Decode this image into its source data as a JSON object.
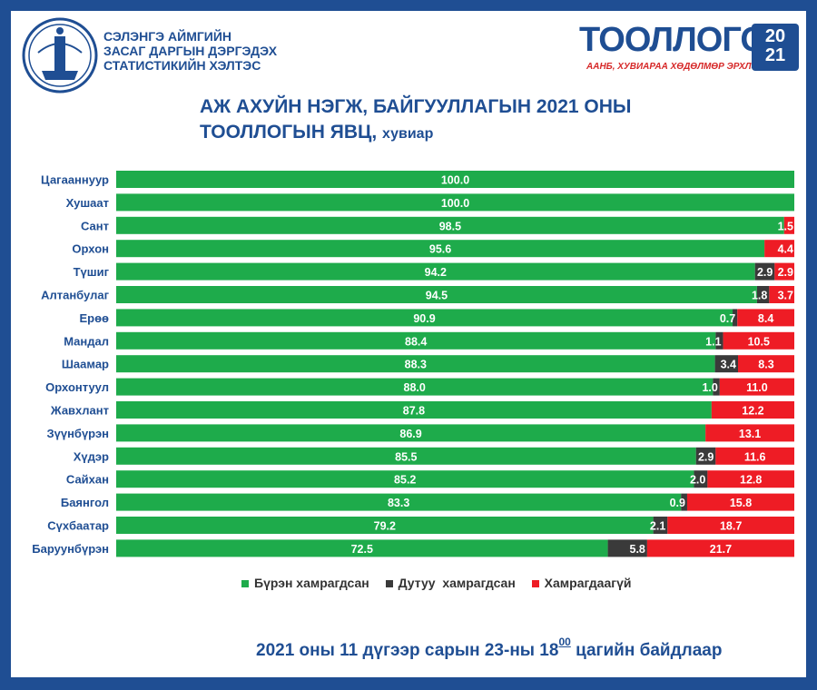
{
  "header": {
    "org_line1": "СЭЛЭНГЭ АЙМГИЙН",
    "org_line2": "ЗАСАГ ДАРГЫН ДЭРГЭДЭХ",
    "org_line3": "СТАТИСТИКИЙН ХЭЛТЭС",
    "logo_word": "ТООЛЛОГО",
    "logo_sub": "ААНБ, ХУВИАРАА ХӨДӨЛМӨР ЭРХЛЭГЧ",
    "logo_year_top": "20",
    "logo_year_bottom": "21"
  },
  "title_line1": "АЖ АХУЙН НЭГЖ, БАЙГУУЛЛАГЫН 2021 ОНЫ",
  "title_line2": "ТООЛЛОГЫН ЯВЦ,",
  "title_unit": "хувиар",
  "colors": {
    "full": "#1eab4b",
    "partial": "#3a3a3a",
    "none": "#ee1c25",
    "label": "#1f4e93"
  },
  "chart_data": {
    "type": "bar",
    "orientation": "horizontal",
    "stacked": true,
    "xlim": [
      0,
      100
    ],
    "categories": [
      "Цагааннуур",
      "Хушаат",
      "Сант",
      "Орхон",
      "Түшиг",
      "Алтанбулаг",
      "Ерөө",
      "Мандал",
      "Шаамар",
      "Орхонтуул",
      "Жавхлант",
      "Зүүнбүрэн",
      "Хүдэр",
      "Сайхан",
      "Баянгол",
      "Сүхбаатар",
      "Баруунбүрэн"
    ],
    "series": [
      {
        "name": "Бүрэн хамрагдсан",
        "values": [
          100.0,
          100.0,
          98.5,
          95.6,
          94.2,
          94.5,
          90.9,
          88.4,
          88.3,
          88.0,
          87.8,
          86.9,
          85.5,
          85.2,
          83.3,
          79.2,
          72.5
        ]
      },
      {
        "name": "Дутуу  хамрагдсан",
        "values": [
          null,
          null,
          null,
          null,
          2.9,
          1.8,
          0.7,
          1.1,
          3.4,
          1.0,
          null,
          null,
          2.9,
          2.0,
          0.9,
          2.1,
          5.8
        ]
      },
      {
        "name": "Хамрагдаагүй",
        "values": [
          null,
          null,
          1.5,
          4.4,
          2.9,
          3.7,
          8.4,
          10.5,
          8.3,
          11.0,
          12.2,
          13.1,
          11.6,
          12.8,
          15.8,
          18.7,
          21.7
        ]
      }
    ],
    "legend_position": "bottom"
  },
  "footer": {
    "text_before": "2021 оны 11 дүгээр сарын 23-ны 18",
    "sup": "00",
    "text_after": "цагийн байдлаар"
  }
}
